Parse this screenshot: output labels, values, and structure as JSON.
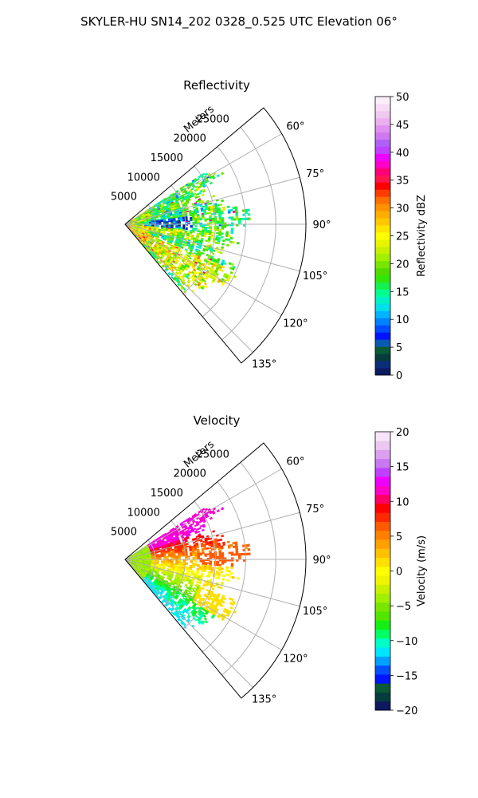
{
  "figure": {
    "title": "SKYLER-HU  SN14_202  0328_0.525 UTC Elevation 06°"
  },
  "chart_data": [
    {
      "type": "heatmap",
      "projection": "polar-sector",
      "title": "Reflectivity",
      "range_label": "Meters",
      "range_max": 30000,
      "range_ticks": [
        5000,
        10000,
        15000,
        20000,
        25000
      ],
      "range_tick_labels": [
        "5000",
        "10000",
        "15000",
        "20000",
        "25000"
      ],
      "azimuth_min_deg": 50,
      "azimuth_max_deg": 140,
      "azimuth_ticks": [
        60,
        75,
        90,
        105,
        120,
        135
      ],
      "azimuth_tick_labels": [
        "60°",
        "75°",
        "90°",
        "105°",
        "120°",
        "135°"
      ],
      "grid": true,
      "colorbar": {
        "label": "Reflectivity dBZ",
        "min": 0,
        "max": 50,
        "ticks": [
          0,
          5,
          10,
          15,
          20,
          25,
          30,
          35,
          40,
          45,
          50
        ],
        "tick_labels": [
          "0",
          "5",
          "10",
          "15",
          "20",
          "25",
          "30",
          "35",
          "40",
          "45",
          "50"
        ],
        "colors": [
          "#0d1a60",
          "#0a2e7a",
          "#063c3c",
          "#0a5a35",
          "#0a5ab4",
          "#0014ff",
          "#004cff",
          "#0082ff",
          "#00b4ff",
          "#00e0e8",
          "#00f0c8",
          "#00ff90",
          "#14f050",
          "#32e60a",
          "#50dc00",
          "#78e600",
          "#a0f000",
          "#c8f000",
          "#e8f400",
          "#ffff00",
          "#ffe400",
          "#ffc800",
          "#ffae00",
          "#ff9000",
          "#ff6e00",
          "#ff3c00",
          "#ff0000",
          "#ff1450",
          "#ff0078",
          "#ff00c8",
          "#ee00ff",
          "#c040ff",
          "#b060f8",
          "#d078f0",
          "#e090f0",
          "#eab0f0",
          "#f0c8f0",
          "#f6dcf6",
          "#fbeefb"
        ]
      }
    },
    {
      "type": "heatmap",
      "projection": "polar-sector",
      "title": "Velocity",
      "range_label": "Meters",
      "range_max": 30000,
      "range_ticks": [
        5000,
        10000,
        15000,
        20000,
        25000
      ],
      "range_tick_labels": [
        "5000",
        "10000",
        "15000",
        "20000",
        "25000"
      ],
      "azimuth_min_deg": 50,
      "azimuth_max_deg": 140,
      "azimuth_ticks": [
        60,
        75,
        90,
        105,
        120,
        135
      ],
      "azimuth_tick_labels": [
        "60°",
        "75°",
        "90°",
        "105°",
        "120°",
        "135°"
      ],
      "grid": true,
      "colorbar": {
        "label": "Velocity (m/s)",
        "min": -20,
        "max": 20,
        "ticks": [
          -20,
          -15,
          -10,
          -5,
          0,
          5,
          10,
          15,
          20
        ],
        "tick_labels": [
          "−20",
          "−15",
          "−10",
          "−5",
          "0",
          "5",
          "10",
          "15",
          "20"
        ],
        "colors": [
          "#0d1a60",
          "#063c3c",
          "#0a5a35",
          "#0014ff",
          "#0050ff",
          "#00a0ff",
          "#00e6ff",
          "#00ffc8",
          "#00ff64",
          "#14f014",
          "#50e600",
          "#78e600",
          "#a0f000",
          "#c8f000",
          "#f0f400",
          "#ffff00",
          "#ffe000",
          "#ffc000",
          "#ffa000",
          "#ff8000",
          "#ff5a00",
          "#ff2800",
          "#ff0000",
          "#ff0064",
          "#ff00c8",
          "#ee00ff",
          "#c040ff",
          "#c878f0",
          "#dca0f0",
          "#ecc8f0",
          "#f8e4f8"
        ]
      }
    }
  ]
}
